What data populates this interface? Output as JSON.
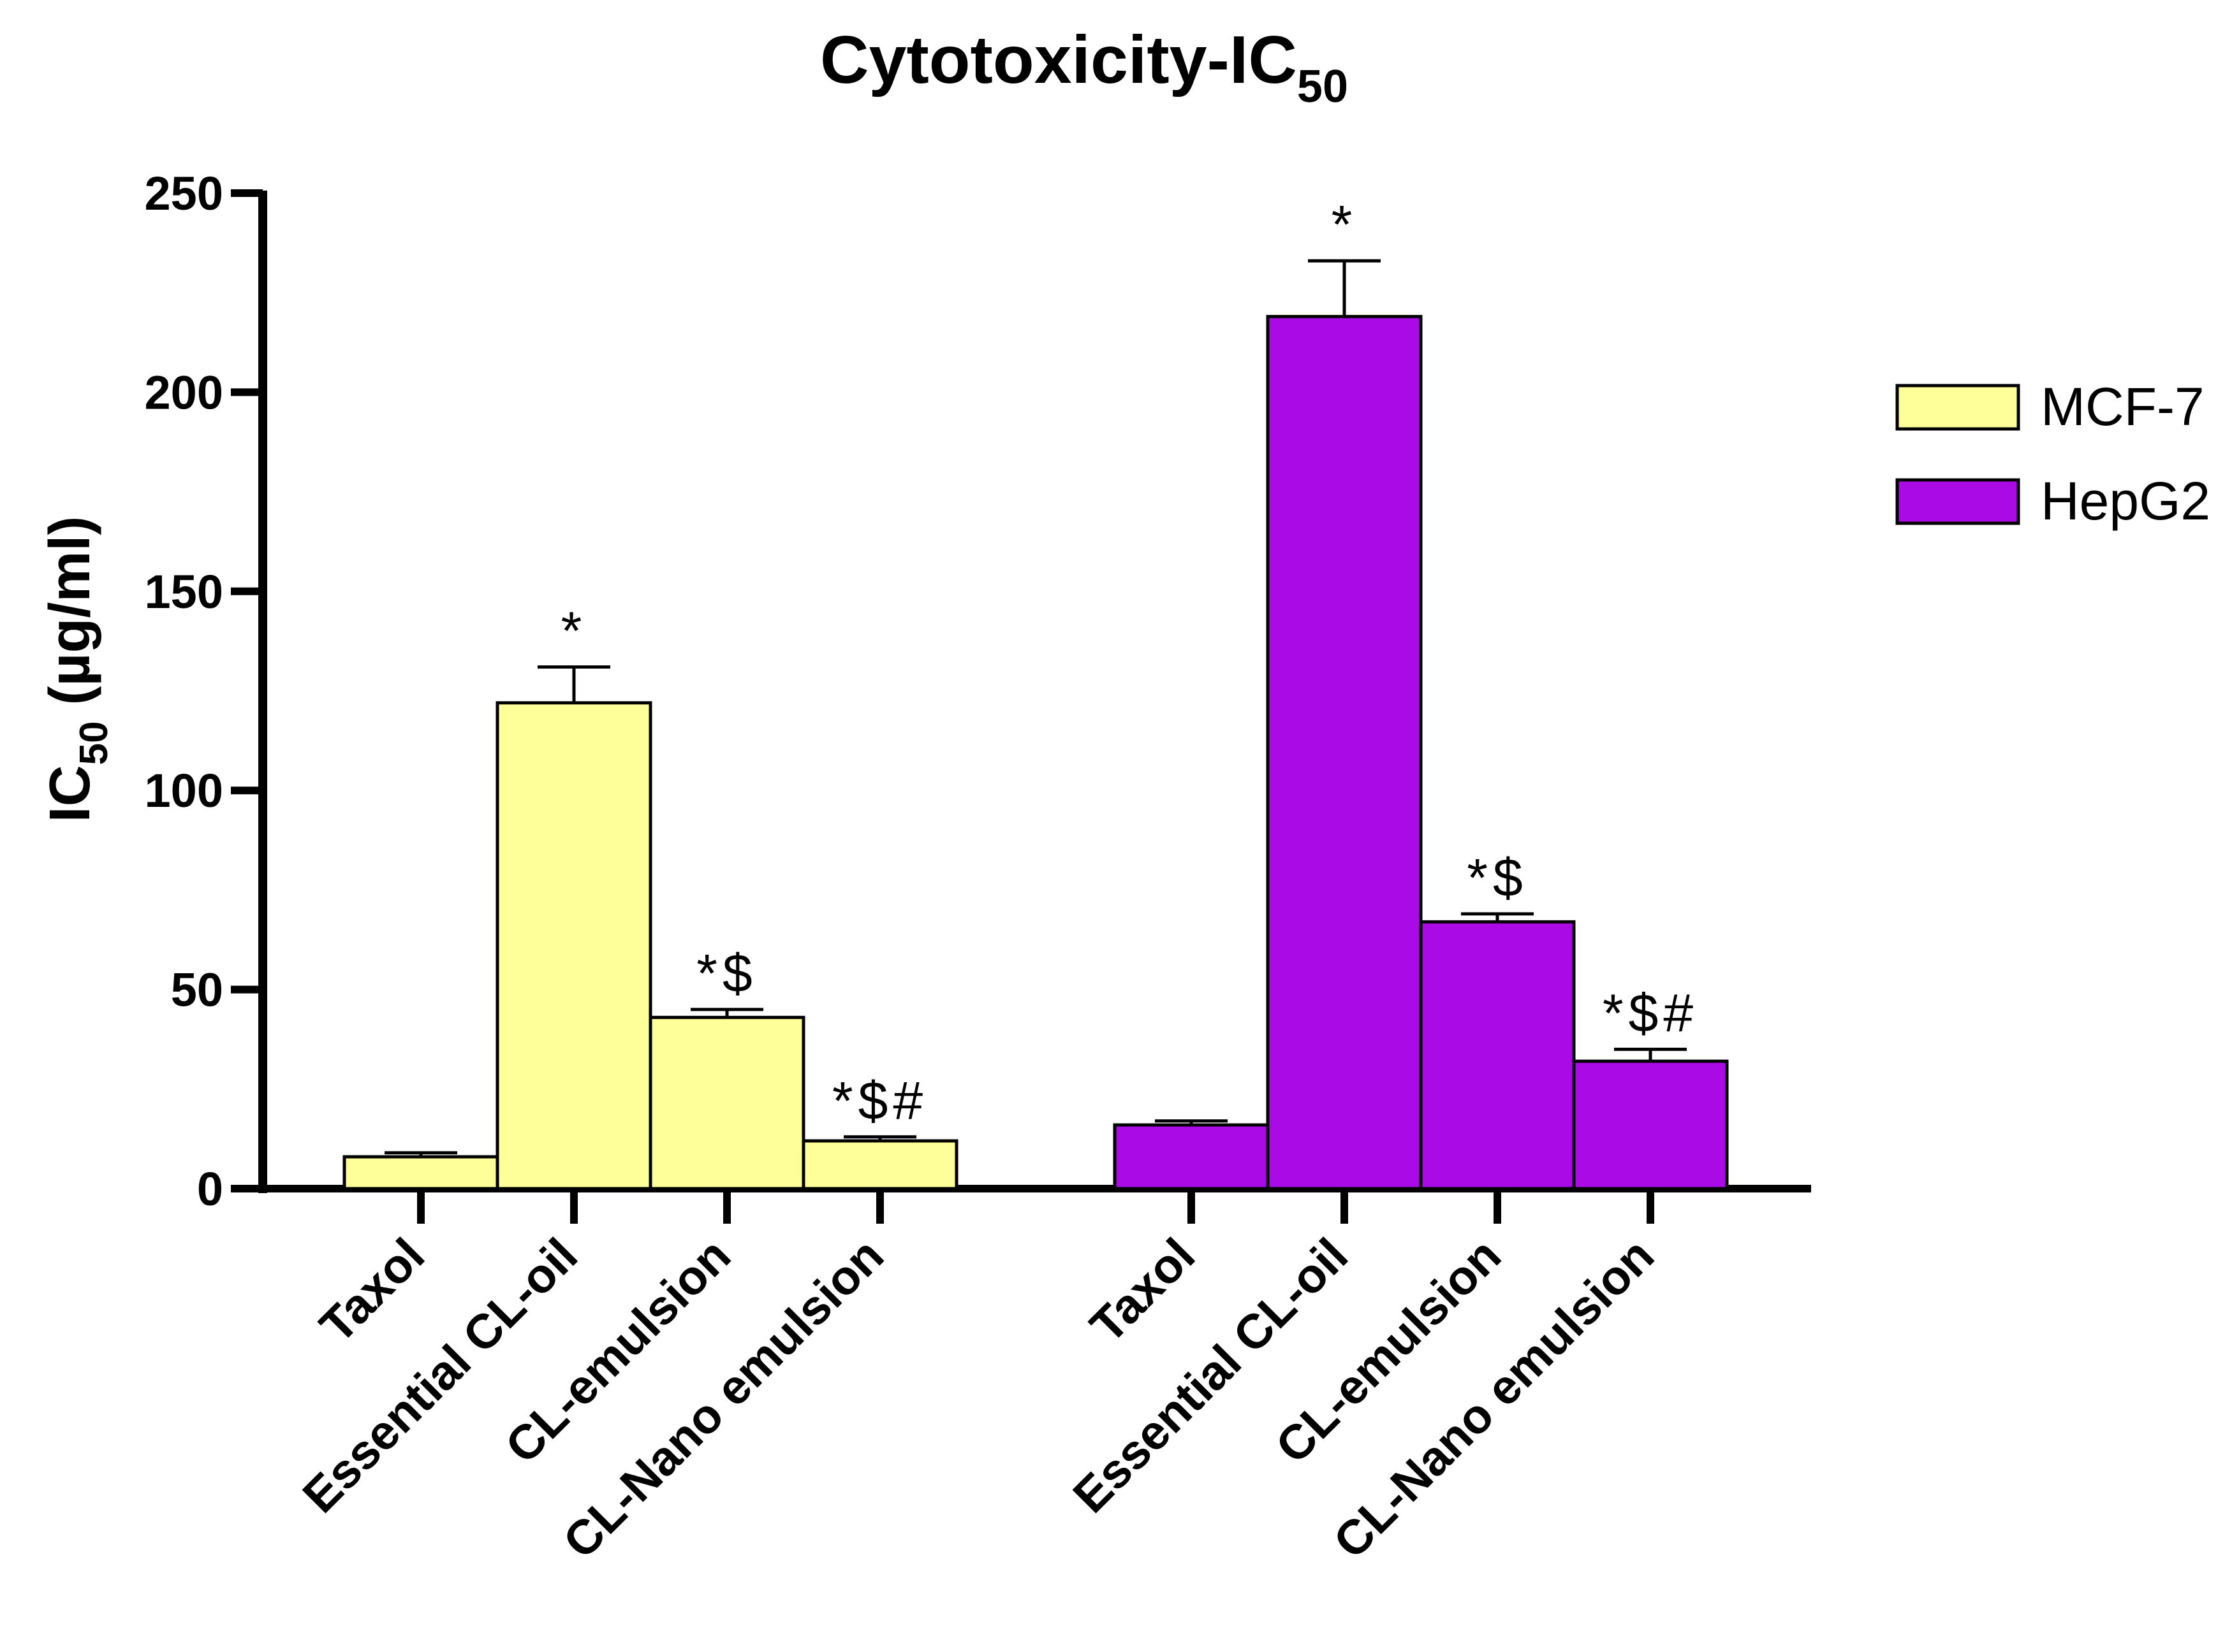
{
  "chart_data": {
    "type": "bar",
    "title": "Cytotoxicity-IC",
    "title_subscript": "50",
    "ylabel": "IC",
    "ylabel_subscript": "50",
    "ylabel_unit": " (µg/ml)",
    "xlabel": "",
    "ylim": [
      0,
      250
    ],
    "yticks": [
      0,
      50,
      100,
      150,
      200,
      250
    ],
    "ytick_labels": [
      "0",
      "50",
      "100",
      "150",
      "200",
      "250"
    ],
    "categories": [
      "Taxol",
      "Essential CL-oil",
      "CL-emulsion",
      "CL-Nano emulsion"
    ],
    "legend_position": "right",
    "series": [
      {
        "name": "MCF-7",
        "color": "#FFFF99",
        "values": [
          8,
          122,
          43,
          12
        ],
        "errors": [
          1,
          9,
          2,
          1
        ],
        "annotations": [
          "",
          "*",
          "*$",
          "*$#"
        ]
      },
      {
        "name": "HepG2",
        "color": "#AA0AE6",
        "values": [
          16,
          219,
          67,
          32
        ],
        "errors": [
          1,
          14,
          2,
          3
        ],
        "annotations": [
          "",
          "*",
          "*$",
          "*$#"
        ]
      }
    ]
  }
}
